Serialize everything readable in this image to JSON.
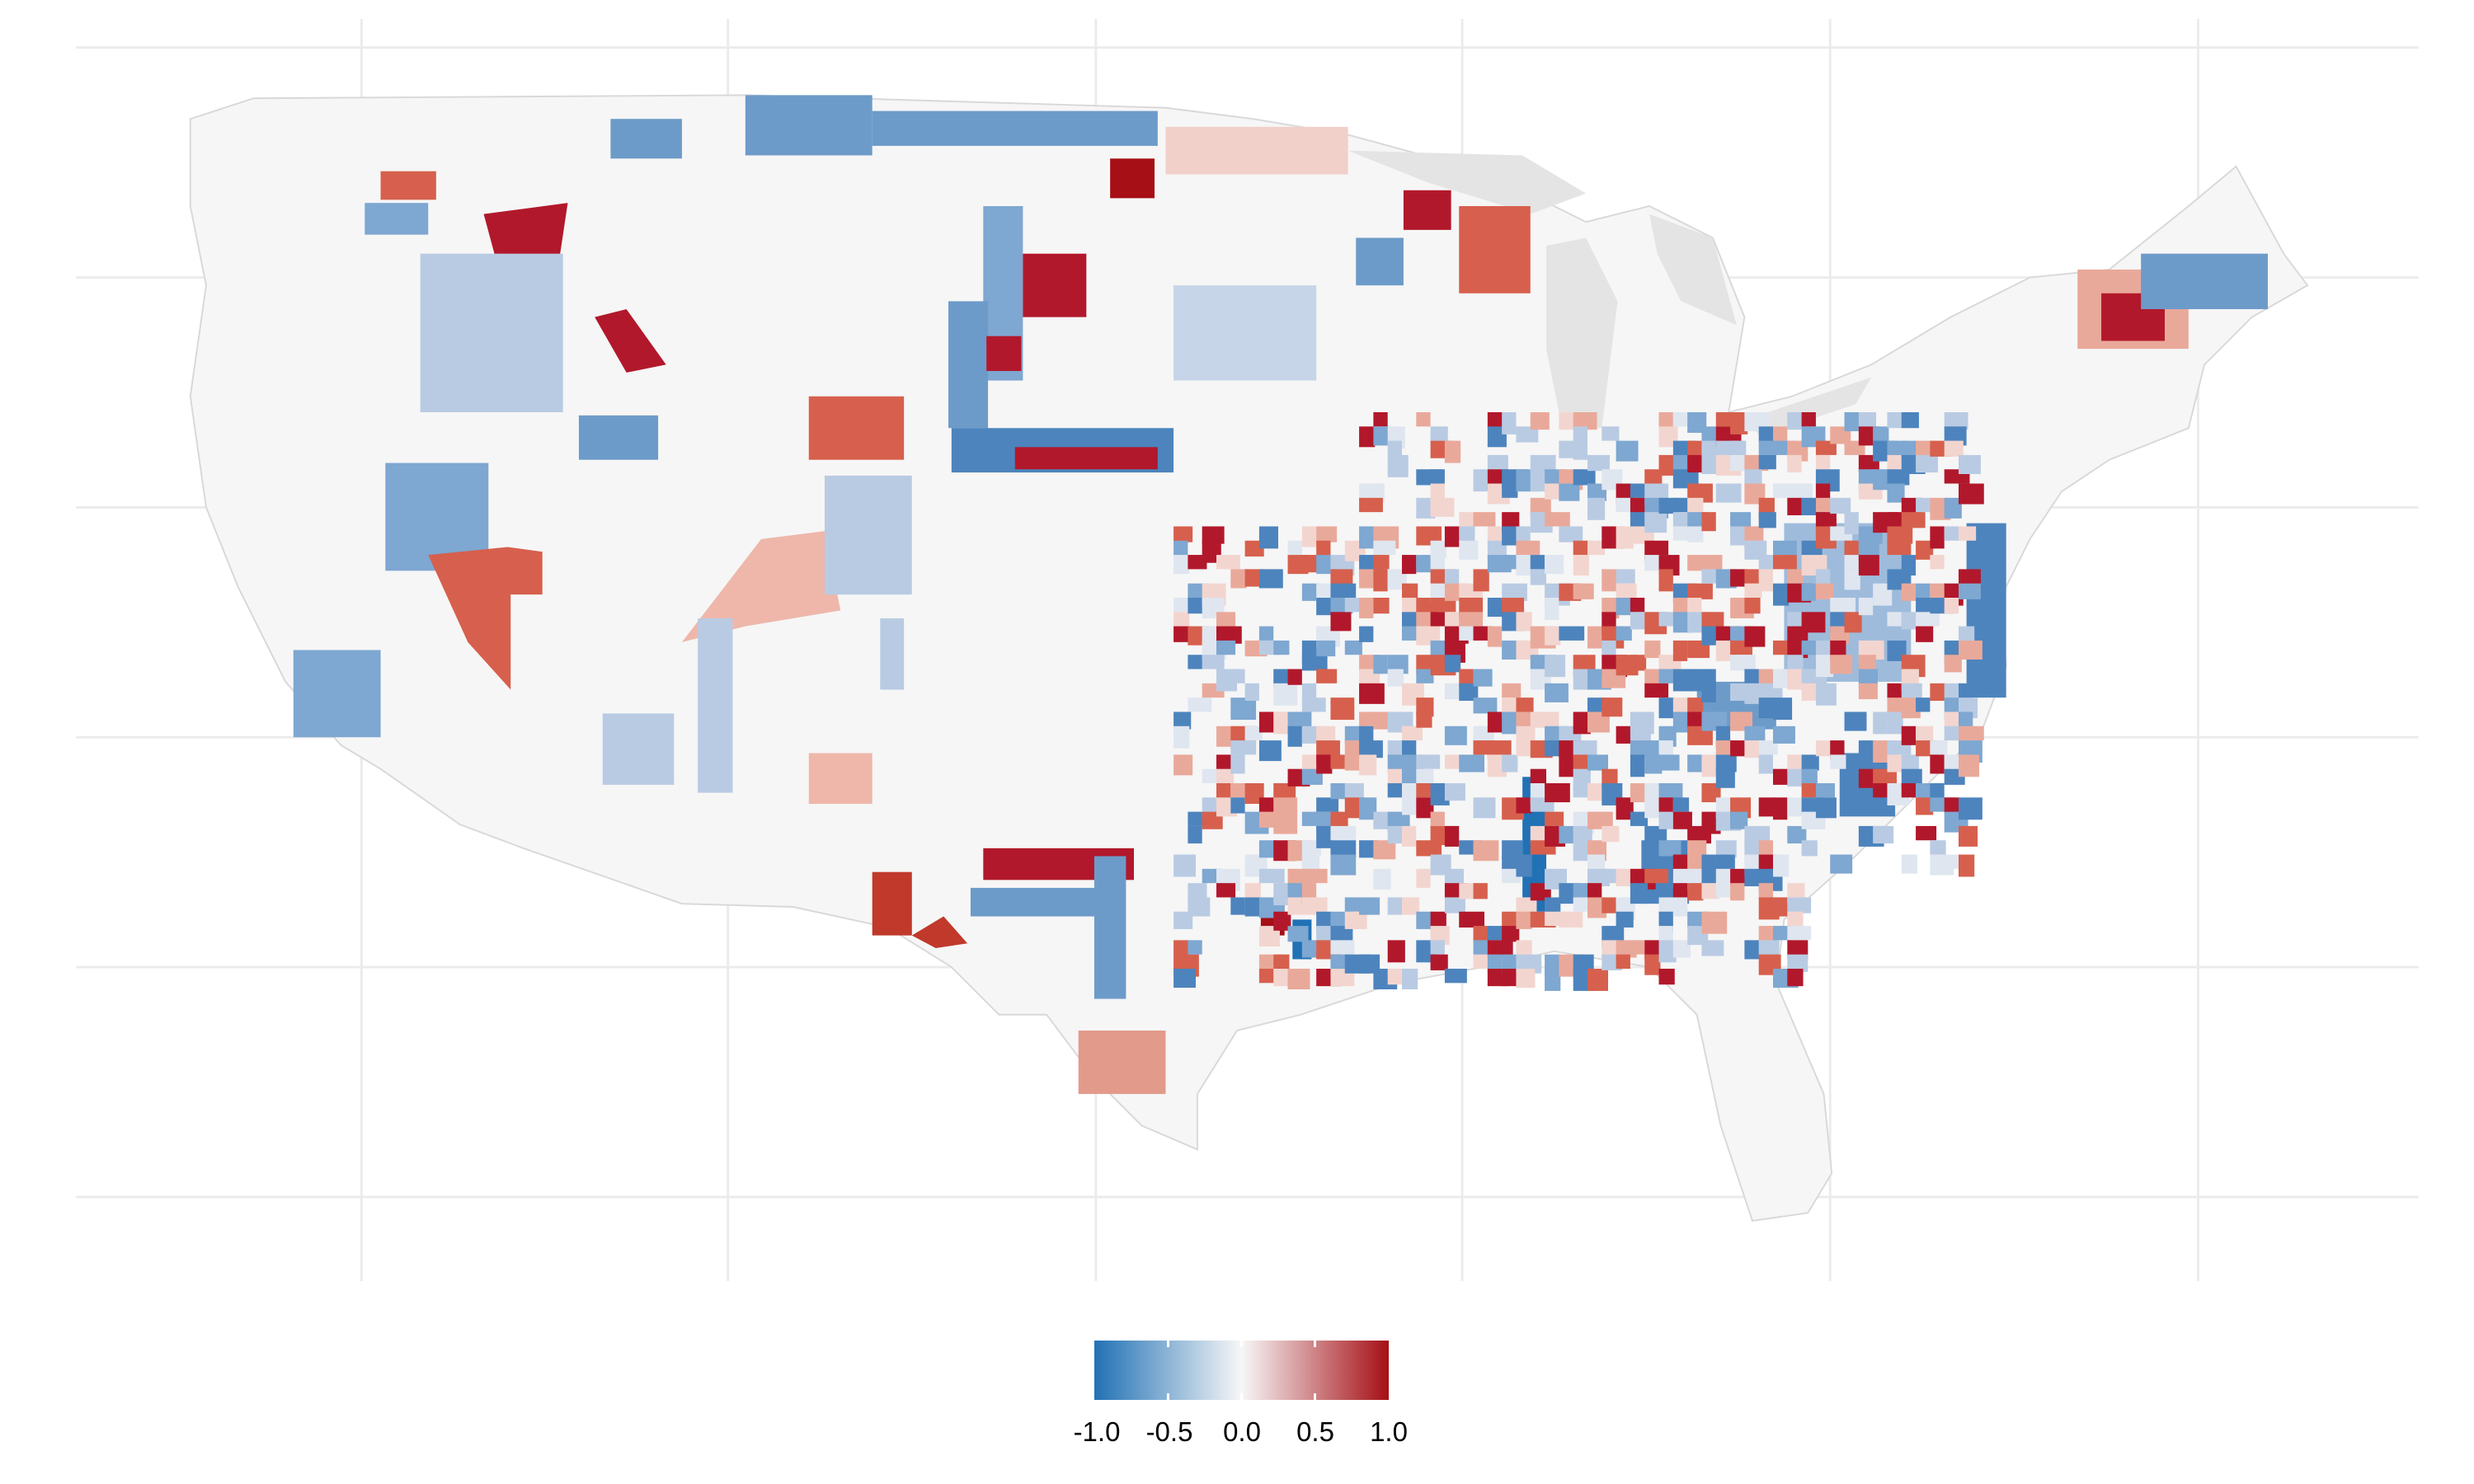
{
  "legend": {
    "ticks": [
      "-1.0",
      "-0.5",
      "0.0",
      "0.5",
      "1.0"
    ],
    "range": [
      -1.0,
      1.0
    ],
    "colors": {
      "low": "#2171b5",
      "mid": "#f7f7f7",
      "high": "#a50f15"
    }
  },
  "map": {
    "region": "Contiguous United States, county-level choropleth",
    "land_color": "#f5f5f5",
    "water_color": "#e3e3e3",
    "grid_color": "#ebebeb"
  }
}
